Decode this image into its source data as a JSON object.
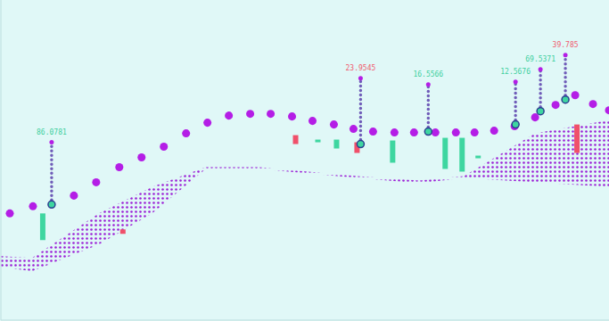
{
  "chart_data": {
    "type": "financial",
    "tick_labels": false,
    "xlim": [
      0,
      683
    ],
    "ylim": [
      0,
      360
    ],
    "curve": {
      "color": "#b41ee6",
      "marker": "circle",
      "x": [
        10,
        36,
        82,
        107,
        133,
        158,
        183,
        208,
        232,
        256,
        280,
        303,
        327,
        350,
        374,
        396,
        418,
        442,
        464,
        488,
        511,
        532,
        554,
        577,
        600,
        623,
        645,
        665,
        683
      ],
      "values": [
        120,
        128,
        140,
        155,
        172,
        183,
        195,
        210,
        222,
        230,
        232,
        232,
        229,
        224,
        220,
        215,
        212,
        211,
        211,
        211,
        211,
        211,
        213,
        218,
        228,
        242,
        253,
        243,
        236
      ]
    },
    "ribbon": {
      "color": "#9b1fd6",
      "x": [
        0,
        35,
        110,
        170,
        230,
        290,
        400,
        470,
        520,
        600,
        683
      ],
      "lower": [
        60,
        55,
        85,
        120,
        170,
        170,
        160,
        154,
        160,
        155,
        150
      ],
      "upper": [
        72,
        70,
        120,
        150,
        172,
        172,
        162,
        157,
        162,
        210,
        225
      ]
    },
    "candles": {
      "x": [
        47,
        137,
        331,
        356,
        377,
        400,
        440,
        499,
        518,
        536,
        647
      ],
      "low": [
        90,
        97,
        198,
        200,
        193,
        188,
        177,
        170,
        167,
        182,
        188
      ],
      "high": [
        120,
        102,
        208,
        203,
        203,
        200,
        202,
        205,
        205,
        185,
        220
      ],
      "colors": [
        "#3ed6a0",
        "#f0506a",
        "#f0506a",
        "#3ed6a0",
        "#3ed6a0",
        "#f0506a",
        "#3ed6a0",
        "#3ed6a0",
        "#3ed6a0",
        "#3ed6a0",
        "#f0506a"
      ]
    },
    "markers": [
      {
        "x": 57,
        "low": 130,
        "high": 200,
        "label": "86.0781",
        "color": "#3ecf9e"
      },
      {
        "x": 404,
        "low": 198,
        "high": 272,
        "label": "23.9545",
        "color": "#f05a6e"
      },
      {
        "x": 480,
        "low": 212,
        "high": 265,
        "label": "16.5566",
        "color": "#3ecf9e"
      },
      {
        "x": 578,
        "low": 220,
        "high": 268,
        "label": "12.5676",
        "color": "#3ecf9e"
      },
      {
        "x": 606,
        "low": 235,
        "high": 282,
        "label": "69.5371",
        "color": "#3ecf9e"
      },
      {
        "x": 634,
        "low": 248,
        "high": 298,
        "label": "39.785",
        "color": "#f05a6e"
      }
    ]
  }
}
